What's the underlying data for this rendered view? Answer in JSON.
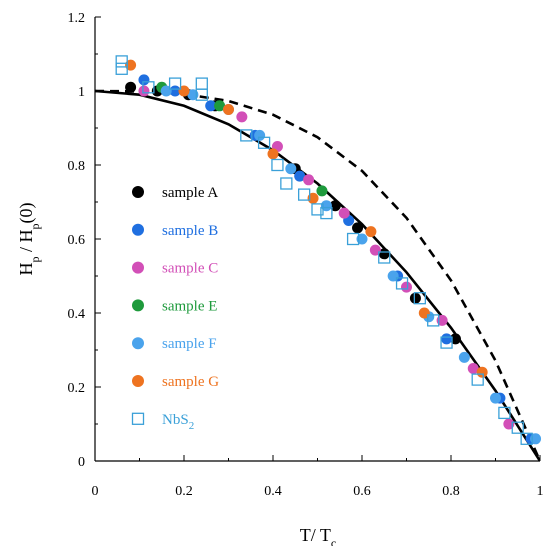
{
  "chart_data": {
    "type": "scatter",
    "xlabel": "T/ T",
    "xlabel_sub": "c",
    "ylabel_parts": [
      "H",
      "p",
      " / H",
      "p",
      "(0)"
    ],
    "xlim": [
      0,
      1
    ],
    "ylim": [
      0,
      1.2
    ],
    "xticks": [
      0,
      0.2,
      0.4,
      0.6,
      0.8,
      1
    ],
    "xtick_labels": [
      "0",
      "0.2",
      "0.4",
      "0.6",
      "0.8",
      "1"
    ],
    "yticks": [
      0,
      0.2,
      0.4,
      0.6,
      0.8,
      1,
      1.2
    ],
    "ytick_labels": [
      "0",
      "0.2",
      "0.4",
      "0.6",
      "0.8",
      "1",
      "1.2"
    ],
    "grid": false,
    "legend_position": "center-left",
    "curves": [
      {
        "style": "solid",
        "color": "#000000",
        "model": "1 - t^2",
        "x": [
          0,
          0.1,
          0.2,
          0.3,
          0.4,
          0.5,
          0.6,
          0.7,
          0.8,
          0.9,
          1.0
        ],
        "y": [
          1.0,
          0.99,
          0.96,
          0.91,
          0.84,
          0.75,
          0.64,
          0.51,
          0.36,
          0.19,
          0.0
        ]
      },
      {
        "style": "dashed",
        "color": "#000000",
        "model": "1 - t^3",
        "x": [
          0,
          0.1,
          0.2,
          0.3,
          0.4,
          0.5,
          0.6,
          0.7,
          0.8,
          0.9,
          1.0
        ],
        "y": [
          1.0,
          0.999,
          0.992,
          0.973,
          0.936,
          0.875,
          0.784,
          0.657,
          0.488,
          0.271,
          0.0
        ]
      }
    ],
    "series": [
      {
        "name": "sample A",
        "color": "#000000",
        "marker": "circle",
        "points": [
          [
            0.08,
            1.01
          ],
          [
            0.14,
            1.0
          ],
          [
            0.21,
            0.99
          ],
          [
            0.27,
            0.96
          ],
          [
            0.45,
            0.79
          ],
          [
            0.54,
            0.69
          ],
          [
            0.59,
            0.63
          ],
          [
            0.65,
            0.56
          ],
          [
            0.72,
            0.44
          ],
          [
            0.81,
            0.33
          ]
        ]
      },
      {
        "name": "sample B",
        "color": "#1f6fe0",
        "marker": "circle",
        "points": [
          [
            0.11,
            1.03
          ],
          [
            0.18,
            1.0
          ],
          [
            0.26,
            0.96
          ],
          [
            0.36,
            0.88
          ],
          [
            0.46,
            0.77
          ],
          [
            0.57,
            0.65
          ],
          [
            0.68,
            0.5
          ],
          [
            0.79,
            0.33
          ],
          [
            0.91,
            0.17
          ],
          [
            0.98,
            0.06
          ]
        ]
      },
      {
        "name": "sample C",
        "color": "#d24fb7",
        "marker": "circle",
        "points": [
          [
            0.11,
            1.0
          ],
          [
            0.33,
            0.93
          ],
          [
            0.41,
            0.85
          ],
          [
            0.48,
            0.76
          ],
          [
            0.56,
            0.67
          ],
          [
            0.63,
            0.57
          ],
          [
            0.7,
            0.47
          ],
          [
            0.78,
            0.38
          ],
          [
            0.85,
            0.25
          ],
          [
            0.93,
            0.1
          ]
        ]
      },
      {
        "name": "sample E",
        "color": "#1e9a3c",
        "marker": "circle",
        "points": [
          [
            0.15,
            1.01
          ],
          [
            0.28,
            0.96
          ],
          [
            0.51,
            0.73
          ]
        ]
      },
      {
        "name": "sample F",
        "color": "#4aa3ec",
        "marker": "circle",
        "points": [
          [
            0.16,
            1.0
          ],
          [
            0.22,
            0.99
          ],
          [
            0.3,
            0.95
          ],
          [
            0.37,
            0.88
          ],
          [
            0.44,
            0.79
          ],
          [
            0.52,
            0.69
          ],
          [
            0.6,
            0.6
          ],
          [
            0.67,
            0.5
          ],
          [
            0.75,
            0.39
          ],
          [
            0.83,
            0.28
          ],
          [
            0.9,
            0.17
          ],
          [
            0.99,
            0.06
          ]
        ]
      },
      {
        "name": "sample G",
        "color": "#ee7320",
        "marker": "circle",
        "points": [
          [
            0.08,
            1.07
          ],
          [
            0.2,
            1.0
          ],
          [
            0.3,
            0.95
          ],
          [
            0.4,
            0.83
          ],
          [
            0.49,
            0.71
          ],
          [
            0.62,
            0.62
          ],
          [
            0.74,
            0.4
          ],
          [
            0.87,
            0.24
          ]
        ]
      },
      {
        "name": "NbS",
        "name_sub": "2",
        "color": "#3aa0d8",
        "marker": "open-square",
        "points": [
          [
            0.06,
            1.08
          ],
          [
            0.06,
            1.06
          ],
          [
            0.12,
            1.01
          ],
          [
            0.18,
            1.02
          ],
          [
            0.24,
            1.02
          ],
          [
            0.24,
            0.99
          ],
          [
            0.34,
            0.88
          ],
          [
            0.38,
            0.86
          ],
          [
            0.41,
            0.8
          ],
          [
            0.43,
            0.75
          ],
          [
            0.47,
            0.72
          ],
          [
            0.5,
            0.68
          ],
          [
            0.52,
            0.67
          ],
          [
            0.58,
            0.6
          ],
          [
            0.65,
            0.55
          ],
          [
            0.69,
            0.48
          ],
          [
            0.73,
            0.44
          ],
          [
            0.76,
            0.38
          ],
          [
            0.79,
            0.32
          ],
          [
            0.86,
            0.22
          ],
          [
            0.92,
            0.13
          ],
          [
            0.95,
            0.09
          ],
          [
            0.97,
            0.06
          ]
        ]
      }
    ]
  }
}
